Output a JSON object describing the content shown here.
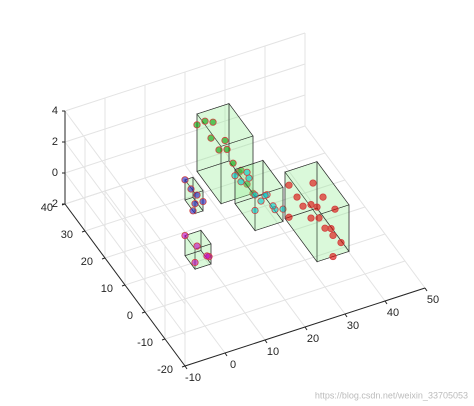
{
  "chart_data": {
    "type": "scatter3d",
    "xlim": [
      -10,
      50
    ],
    "xticks": [
      -10,
      0,
      10,
      20,
      30,
      40,
      50
    ],
    "ylim": [
      -20,
      40
    ],
    "yticks": [
      -20,
      -10,
      0,
      10,
      20,
      30,
      40
    ],
    "zlim": [
      -2,
      4
    ],
    "zticks": [
      -2,
      0,
      2,
      4
    ],
    "grid": true,
    "box_fill": "#90ee90",
    "series": [
      {
        "color": "#00a000",
        "x": [
          18,
          19,
          20,
          21,
          22,
          23,
          24,
          25,
          26,
          20,
          22,
          24
        ],
        "y": [
          30,
          28,
          27,
          25,
          24,
          22,
          21,
          19,
          18,
          26,
          23,
          20
        ],
        "z": [
          2.5,
          3,
          2,
          1.5,
          2.2,
          1,
          0.5,
          0,
          -0.5,
          3.2,
          1.8,
          0.8
        ]
      },
      {
        "color": "#00c8c8",
        "x": [
          23,
          24,
          25,
          26,
          27,
          28,
          24,
          26,
          25,
          27,
          29,
          22
        ],
        "y": [
          18,
          16,
          15,
          14,
          13,
          11,
          17,
          12,
          15,
          10,
          9,
          19
        ],
        "z": [
          0.5,
          1,
          0,
          -0.3,
          0.2,
          -0.5,
          1.2,
          0.4,
          -1,
          0,
          -0.2,
          0.8
        ]
      },
      {
        "color": "#e00000",
        "x": [
          31,
          32,
          33,
          34,
          35,
          36,
          37,
          38,
          33,
          35,
          36,
          34,
          39,
          32,
          37,
          35
        ],
        "y": [
          10,
          8,
          7,
          5,
          4,
          2,
          0,
          -2,
          3,
          6,
          -1,
          1,
          3,
          12,
          5,
          -4
        ],
        "z": [
          1,
          0.5,
          0,
          -0.5,
          0.3,
          -0.8,
          -1,
          -1.2,
          0.8,
          1.5,
          -0.3,
          0.2,
          0,
          -1.5,
          0.6,
          -1.5
        ]
      },
      {
        "color": "#2020c0",
        "x": [
          12,
          13,
          14,
          13,
          12,
          14
        ],
        "y": [
          24,
          23,
          22,
          21,
          20,
          19
        ],
        "z": [
          0.5,
          0,
          -0.3,
          -0.6,
          -0.8,
          -0.2
        ]
      },
      {
        "color": "#c000c0",
        "x": [
          6,
          8,
          10,
          7,
          9
        ],
        "y": [
          12,
          10,
          8,
          9,
          7
        ],
        "z": [
          -0.5,
          -1,
          -1.5,
          -1.8,
          -1.2
        ]
      }
    ],
    "watermark": "https://blog.csdn.net/weixin_33705053"
  }
}
